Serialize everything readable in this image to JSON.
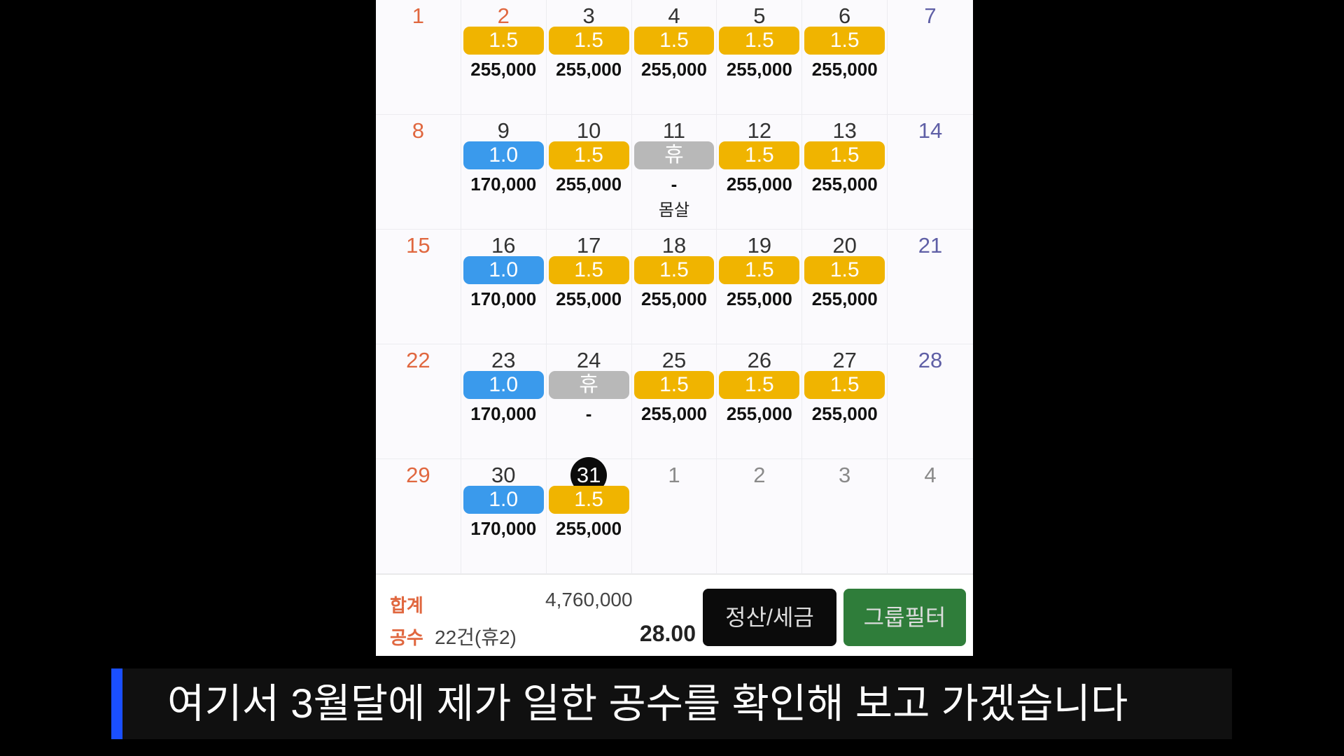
{
  "colors": {
    "blue_badge": "#3a9aec",
    "yellow_badge": "#f0b400",
    "rest_badge": "#b8b8b8",
    "sunday": "#e0673f",
    "saturday": "#5f5fa6",
    "settle_button": "#0b0b0b",
    "group_button": "#2f7d3a"
  },
  "calendar": {
    "weeks": [
      [
        {
          "day": "1",
          "type": "sun"
        },
        {
          "day": "2",
          "type": "sun",
          "badge": "1.5",
          "color": "yellow",
          "amount": "255,000"
        },
        {
          "day": "3",
          "badge": "1.5",
          "color": "yellow",
          "amount": "255,000"
        },
        {
          "day": "4",
          "badge": "1.5",
          "color": "yellow",
          "amount": "255,000"
        },
        {
          "day": "5",
          "badge": "1.5",
          "color": "yellow",
          "amount": "255,000"
        },
        {
          "day": "6",
          "badge": "1.5",
          "color": "yellow",
          "amount": "255,000"
        },
        {
          "day": "7",
          "type": "sat"
        }
      ],
      [
        {
          "day": "8",
          "type": "sun"
        },
        {
          "day": "9",
          "badge": "1.0",
          "color": "blue",
          "amount": "170,000"
        },
        {
          "day": "10",
          "badge": "1.5",
          "color": "yellow",
          "amount": "255,000"
        },
        {
          "day": "11",
          "badge": "휴",
          "color": "rest",
          "amount": "-",
          "memo": "몸살"
        },
        {
          "day": "12",
          "badge": "1.5",
          "color": "yellow",
          "amount": "255,000"
        },
        {
          "day": "13",
          "badge": "1.5",
          "color": "yellow",
          "amount": "255,000"
        },
        {
          "day": "14",
          "type": "sat"
        }
      ],
      [
        {
          "day": "15",
          "type": "sun"
        },
        {
          "day": "16",
          "badge": "1.0",
          "color": "blue",
          "amount": "170,000"
        },
        {
          "day": "17",
          "badge": "1.5",
          "color": "yellow",
          "amount": "255,000"
        },
        {
          "day": "18",
          "badge": "1.5",
          "color": "yellow",
          "amount": "255,000"
        },
        {
          "day": "19",
          "badge": "1.5",
          "color": "yellow",
          "amount": "255,000"
        },
        {
          "day": "20",
          "badge": "1.5",
          "color": "yellow",
          "amount": "255,000"
        },
        {
          "day": "21",
          "type": "sat"
        }
      ],
      [
        {
          "day": "22",
          "type": "sun"
        },
        {
          "day": "23",
          "badge": "1.0",
          "color": "blue",
          "amount": "170,000"
        },
        {
          "day": "24",
          "badge": "휴",
          "color": "rest",
          "amount": "-"
        },
        {
          "day": "25",
          "badge": "1.5",
          "color": "yellow",
          "amount": "255,000"
        },
        {
          "day": "26",
          "badge": "1.5",
          "color": "yellow",
          "amount": "255,000"
        },
        {
          "day": "27",
          "badge": "1.5",
          "color": "yellow",
          "amount": "255,000"
        },
        {
          "day": "28",
          "type": "sat"
        }
      ],
      [
        {
          "day": "29",
          "type": "sun"
        },
        {
          "day": "30",
          "badge": "1.0",
          "color": "blue",
          "amount": "170,000"
        },
        {
          "day": "31",
          "type": "today",
          "badge": "1.5",
          "color": "yellow",
          "amount": "255,000"
        },
        {
          "day": "1",
          "type": "other"
        },
        {
          "day": "2",
          "type": "other"
        },
        {
          "day": "3",
          "type": "other"
        },
        {
          "day": "4",
          "type": "other"
        }
      ]
    ]
  },
  "footer": {
    "total_label": "합계",
    "total_value": "4,760,000",
    "work_label": "공수",
    "work_count": "22건(휴2)",
    "work_value": "28.00",
    "settle_button": "정산/세금",
    "group_filter_button": "그룹필터"
  },
  "subtitle": {
    "text": "여기서 3월달에 제가 일한 공수를 확인해 보고 가겠습니다"
  }
}
